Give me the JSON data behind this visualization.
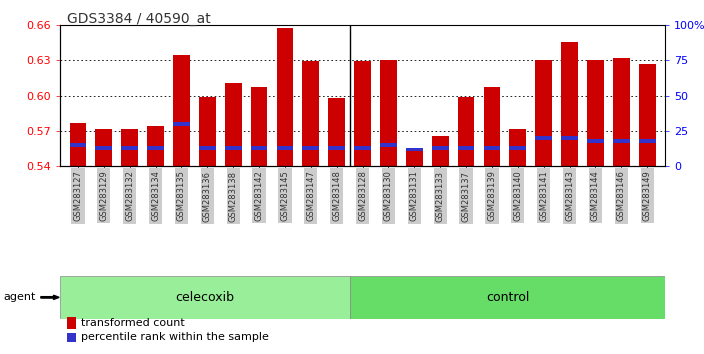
{
  "title": "GDS3384 / 40590_at",
  "samples": [
    "GSM283127",
    "GSM283129",
    "GSM283132",
    "GSM283134",
    "GSM283135",
    "GSM283136",
    "GSM283138",
    "GSM283142",
    "GSM283145",
    "GSM283147",
    "GSM283148",
    "GSM283128",
    "GSM283130",
    "GSM283131",
    "GSM283133",
    "GSM283137",
    "GSM283139",
    "GSM283140",
    "GSM283141",
    "GSM283143",
    "GSM283144",
    "GSM283146",
    "GSM283149"
  ],
  "red_values": [
    0.577,
    0.572,
    0.572,
    0.574,
    0.634,
    0.599,
    0.611,
    0.607,
    0.657,
    0.629,
    0.598,
    0.629,
    0.63,
    0.555,
    0.566,
    0.599,
    0.607,
    0.572,
    0.63,
    0.645,
    0.63,
    0.632,
    0.627
  ],
  "blue_percentiles": [
    15,
    13,
    13,
    13,
    30,
    13,
    13,
    13,
    13,
    13,
    13,
    13,
    15,
    12,
    13,
    13,
    13,
    13,
    20,
    20,
    18,
    18,
    18
  ],
  "celecoxib_count": 11,
  "control_count": 12,
  "y_min": 0.54,
  "y_max": 0.66,
  "y_ticks": [
    0.54,
    0.57,
    0.6,
    0.63,
    0.66
  ],
  "right_ticks": [
    0,
    25,
    50,
    75,
    100
  ],
  "bar_color": "#cc0000",
  "blue_color": "#3333cc",
  "celecoxib_color": "#99ee99",
  "control_color": "#66dd66",
  "bg_color": "#ffffff",
  "xticklabel_bg": "#cccccc",
  "tick_label_color": "#333333",
  "title_color": "#333333"
}
